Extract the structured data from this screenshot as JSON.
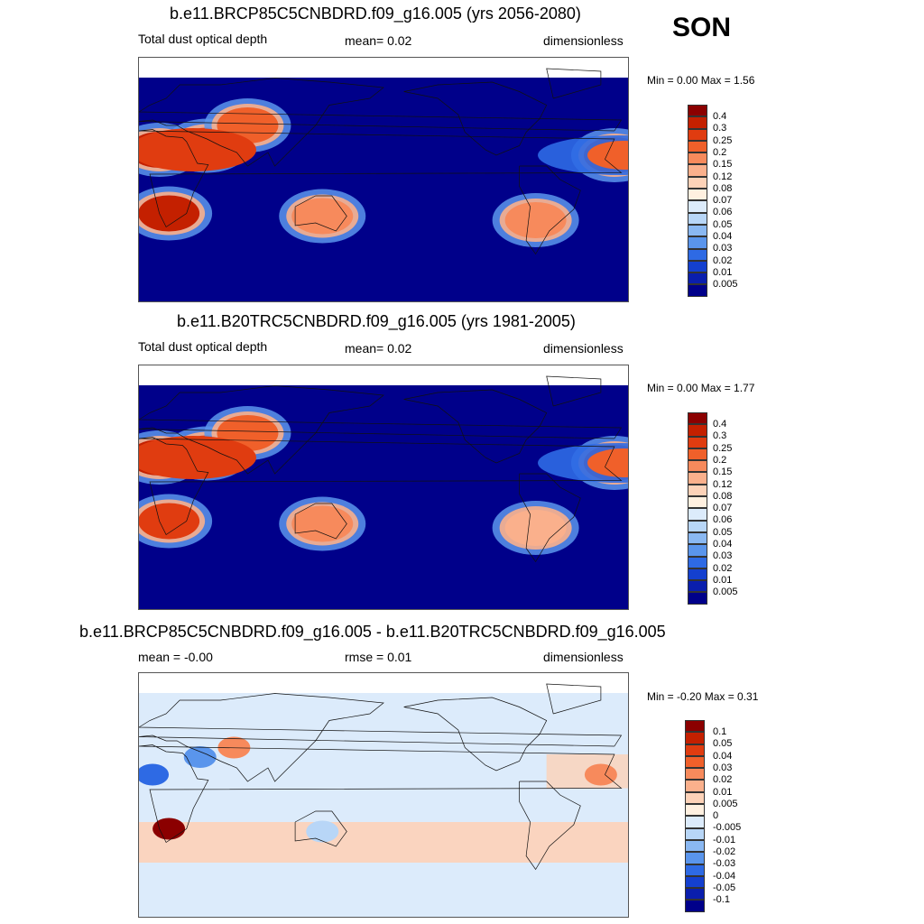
{
  "season": "SON",
  "chart_data": [
    {
      "type": "heatmap",
      "title": "b.e11.BRCP85C5CNBDRD.f09_g16.005 (yrs 2056-2080)",
      "variable": "Total dust optical depth",
      "stat_text": "mean=   0.02",
      "units": "dimensionless",
      "minmax_text": "Min =    0.00 Max =    1.56",
      "min": 0.0,
      "max": 1.56,
      "mean": 0.02,
      "levels": [
        "0.4",
        "0.3",
        "0.25",
        "0.2",
        "0.15",
        "0.12",
        "0.08",
        "0.07",
        "0.06",
        "0.05",
        "0.04",
        "0.03",
        "0.02",
        "0.01",
        "0.005"
      ],
      "colors": [
        "#8b0000",
        "#c42000",
        "#e03c10",
        "#f0602a",
        "#f78a5c",
        "#fab08c",
        "#fdd2b8",
        "#fff0e0",
        "#dcebfb",
        "#b8d6f7",
        "#8ab8f2",
        "#5a95ec",
        "#2e6ae4",
        "#1440cf",
        "#0a1ead",
        "#00008a"
      ],
      "regions": [
        {
          "lon": 15,
          "lat": 22,
          "value": 0.3
        },
        {
          "lon": 50,
          "lat": 25,
          "value": 0.25
        },
        {
          "lon": 80,
          "lat": 40,
          "value": 0.2
        },
        {
          "lon": 22,
          "lat": -25,
          "value": 0.3
        },
        {
          "lon": 135,
          "lat": -27,
          "value": 0.15
        },
        {
          "lon": -68,
          "lat": -30,
          "value": 0.15
        },
        {
          "lon": -10,
          "lat": 18,
          "value": 0.25
        }
      ]
    },
    {
      "type": "heatmap",
      "title": "b.e11.B20TRC5CNBDRD.f09_g16.005 (yrs 1981-2005)",
      "variable": "Total dust optical depth",
      "stat_text": "mean=   0.02",
      "units": "dimensionless",
      "minmax_text": "Min =    0.00 Max =    1.77",
      "min": 0.0,
      "max": 1.77,
      "mean": 0.02,
      "levels": [
        "0.4",
        "0.3",
        "0.25",
        "0.2",
        "0.15",
        "0.12",
        "0.08",
        "0.07",
        "0.06",
        "0.05",
        "0.04",
        "0.03",
        "0.02",
        "0.01",
        "0.005"
      ],
      "colors": [
        "#8b0000",
        "#c42000",
        "#e03c10",
        "#f0602a",
        "#f78a5c",
        "#fab08c",
        "#fdd2b8",
        "#fff0e0",
        "#dcebfb",
        "#b8d6f7",
        "#8ab8f2",
        "#5a95ec",
        "#2e6ae4",
        "#1440cf",
        "#0a1ead",
        "#00008a"
      ],
      "regions": [
        {
          "lon": 15,
          "lat": 22,
          "value": 0.3
        },
        {
          "lon": 50,
          "lat": 25,
          "value": 0.25
        },
        {
          "lon": 80,
          "lat": 40,
          "value": 0.2
        },
        {
          "lon": 22,
          "lat": -25,
          "value": 0.25
        },
        {
          "lon": 135,
          "lat": -27,
          "value": 0.15
        },
        {
          "lon": -68,
          "lat": -30,
          "value": 0.12
        },
        {
          "lon": -10,
          "lat": 18,
          "value": 0.25
        }
      ]
    },
    {
      "type": "heatmap",
      "title": "b.e11.BRCP85C5CNBDRD.f09_g16.005 - b.e11.B20TRC5CNBDRD.f09_g16.005",
      "variable": "mean =  -0.00",
      "stat_text": "rmse =   0.01",
      "units": "dimensionless",
      "minmax_text": "Min =  -0.20 Max =    0.31",
      "min": -0.2,
      "max": 0.31,
      "mean": -0.0,
      "rmse": 0.01,
      "levels": [
        "0.1",
        "0.05",
        "0.04",
        "0.03",
        "0.02",
        "0.01",
        "0.005",
        "0",
        "-0.005",
        "-0.01",
        "-0.02",
        "-0.03",
        "-0.04",
        "-0.05",
        "-0.1"
      ],
      "colors": [
        "#8b0000",
        "#c42000",
        "#e03c10",
        "#f0602a",
        "#f78a5c",
        "#fab08c",
        "#fdd2b8",
        "#fff0e0",
        "#dcebfb",
        "#b8d6f7",
        "#8ab8f2",
        "#5a95ec",
        "#2e6ae4",
        "#1440cf",
        "#0a1ead",
        "#00008a"
      ],
      "regions": [
        {
          "lon": 22,
          "lat": -25,
          "value": 0.1
        },
        {
          "lon": 10,
          "lat": 15,
          "value": -0.04
        },
        {
          "lon": 45,
          "lat": 28,
          "value": -0.03
        },
        {
          "lon": 70,
          "lat": 35,
          "value": 0.02
        },
        {
          "lon": -20,
          "lat": 15,
          "value": 0.02
        },
        {
          "lon": 135,
          "lat": -27,
          "value": -0.01
        }
      ]
    }
  ]
}
